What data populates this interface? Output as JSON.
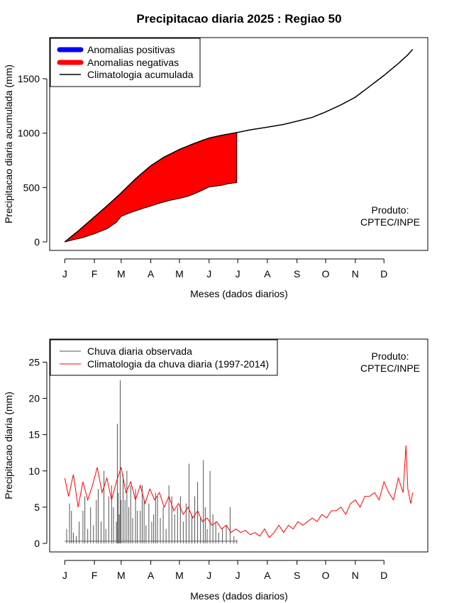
{
  "figure_title": "Precipitacao diaria 2025 : Regiao 50",
  "colors": {
    "positive_anomaly": "#0000ff",
    "negative_anomaly": "#ff0000",
    "climatology_line": "#000000",
    "observed_rain": "#555555",
    "climatology_daily": "#ff0000"
  },
  "chart_data": [
    {
      "type": "area",
      "title": "Precipitacao diaria 2025 : Regiao 50",
      "xlabel": "Meses (dados diarios)",
      "ylabel": "Precipitacao diaria acumulada (mm)",
      "ylim": [
        0,
        1800
      ],
      "xlim": [
        1,
        365
      ],
      "y_ticks": [
        0,
        500,
        1000,
        1500
      ],
      "x_tick_labels": [
        "J",
        "F",
        "M",
        "A",
        "M",
        "J",
        "J",
        "A",
        "S",
        "O",
        "N",
        "D"
      ],
      "x_tick_days": [
        1,
        32,
        60,
        91,
        121,
        152,
        182,
        213,
        244,
        274,
        305,
        335
      ],
      "legend_position": "top-left",
      "legend": [
        "Anomalias positivas",
        "Anomalias negativas",
        "Climatologia acumulada"
      ],
      "annotation": [
        "Produto:",
        "CPTEC/INPE"
      ],
      "observed_last_day": 181,
      "series": [
        {
          "name": "Climatologia acumulada",
          "days": [
            1,
            15,
            32,
            45,
            60,
            75,
            91,
            105,
            121,
            135,
            152,
            165,
            181,
            195,
            213,
            230,
            244,
            260,
            274,
            290,
            305,
            320,
            335,
            350,
            360,
            365
          ],
          "values": [
            0,
            100,
            230,
            330,
            450,
            580,
            700,
            780,
            850,
            900,
            955,
            980,
            1005,
            1030,
            1055,
            1080,
            1110,
            1145,
            1195,
            1260,
            1330,
            1430,
            1530,
            1640,
            1720,
            1770
          ]
        },
        {
          "name": "Precipitacao acumulada observada",
          "days": [
            1,
            10,
            20,
            32,
            45,
            55,
            60,
            70,
            80,
            91,
            100,
            110,
            121,
            130,
            140,
            152,
            165,
            172,
            181
          ],
          "values": [
            0,
            20,
            40,
            75,
            120,
            180,
            235,
            270,
            300,
            330,
            355,
            380,
            400,
            420,
            455,
            505,
            520,
            535,
            545
          ]
        }
      ]
    },
    {
      "type": "line",
      "xlabel": "Meses (dados diarios)",
      "ylabel": "Precipitacao diaria (mm)",
      "ylim": [
        0,
        27
      ],
      "xlim": [
        1,
        365
      ],
      "y_ticks": [
        0,
        5,
        10,
        15,
        20,
        25
      ],
      "x_tick_labels": [
        "J",
        "F",
        "M",
        "A",
        "M",
        "J",
        "J",
        "A",
        "S",
        "O",
        "N",
        "D"
      ],
      "x_tick_days": [
        1,
        32,
        60,
        91,
        121,
        152,
        182,
        213,
        244,
        274,
        305,
        335
      ],
      "legend_position": "top-left",
      "legend": [
        "Chuva diaria observada",
        "Climatologia da chuva diaria (1997-2014)"
      ],
      "annotation": [
        "Produto:",
        "CPTEC/INPE"
      ],
      "series": [
        {
          "name": "Chuva diaria observada",
          "kind": "bars",
          "days": [
            3,
            6,
            8,
            10,
            13,
            16,
            20,
            22,
            25,
            28,
            31,
            34,
            36,
            39,
            42,
            44,
            47,
            50,
            52,
            55,
            56,
            57,
            58,
            59,
            60,
            62,
            64,
            66,
            68,
            70,
            72,
            75,
            77,
            80,
            82,
            84,
            86,
            89,
            92,
            94,
            96,
            98,
            101,
            104,
            107,
            110,
            113,
            116,
            119,
            122,
            125,
            128,
            131,
            134,
            137,
            140,
            143,
            146,
            148,
            150,
            153,
            156,
            159,
            162,
            166,
            170,
            174,
            178,
            181
          ],
          "values": [
            2.0,
            5.5,
            4.5,
            1.5,
            1.0,
            3.0,
            4.5,
            6.5,
            2.0,
            5.0,
            2.5,
            6.0,
            7.5,
            3.0,
            10.0,
            2.0,
            6.5,
            8.0,
            5.0,
            3.0,
            16.5,
            7.0,
            4.0,
            22.5,
            6.0,
            9.5,
            6.0,
            10.0,
            5.0,
            8.0,
            3.5,
            7.5,
            4.5,
            4.5,
            8.0,
            6.0,
            2.5,
            5.5,
            3.0,
            4.0,
            7.0,
            6.5,
            3.5,
            5.0,
            2.0,
            8.0,
            6.5,
            4.0,
            5.0,
            6.5,
            3.0,
            5.5,
            11.0,
            4.0,
            6.5,
            8.5,
            3.5,
            11.5,
            5.0,
            2.0,
            10.0,
            4.0,
            3.0,
            1.5,
            2.0,
            2.5,
            5.0,
            1.0,
            0.5
          ]
        },
        {
          "name": "Climatologia da chuva diaria (1997-2014)",
          "kind": "line",
          "days": [
            1,
            5,
            10,
            15,
            20,
            25,
            30,
            35,
            40,
            45,
            50,
            55,
            60,
            65,
            70,
            75,
            80,
            85,
            90,
            95,
            100,
            105,
            110,
            115,
            120,
            125,
            130,
            135,
            140,
            145,
            150,
            155,
            160,
            165,
            170,
            175,
            180,
            185,
            190,
            195,
            200,
            205,
            210,
            215,
            220,
            225,
            230,
            235,
            240,
            245,
            250,
            255,
            260,
            265,
            270,
            275,
            280,
            285,
            290,
            295,
            300,
            305,
            310,
            315,
            320,
            325,
            330,
            335,
            340,
            345,
            350,
            355,
            358,
            360,
            363,
            365
          ],
          "values": [
            9.0,
            6.5,
            9.5,
            5.0,
            8.5,
            6.0,
            8.0,
            10.5,
            7.0,
            9.0,
            6.0,
            8.5,
            10.5,
            7.0,
            8.5,
            6.0,
            8.0,
            5.5,
            7.5,
            6.0,
            7.0,
            5.0,
            6.5,
            4.5,
            5.5,
            4.0,
            5.0,
            3.5,
            4.5,
            3.0,
            3.5,
            2.5,
            3.0,
            2.0,
            2.5,
            1.5,
            2.0,
            1.5,
            1.8,
            1.2,
            1.5,
            1.0,
            2.0,
            0.8,
            1.5,
            2.5,
            1.5,
            2.5,
            2.0,
            3.0,
            2.5,
            3.0,
            3.5,
            3.0,
            4.0,
            3.5,
            4.5,
            4.5,
            5.0,
            4.0,
            5.5,
            6.0,
            5.0,
            6.5,
            6.5,
            7.0,
            6.0,
            8.5,
            7.0,
            6.0,
            9.0,
            7.0,
            13.5,
            7.5,
            5.5,
            7.0
          ]
        }
      ]
    }
  ]
}
